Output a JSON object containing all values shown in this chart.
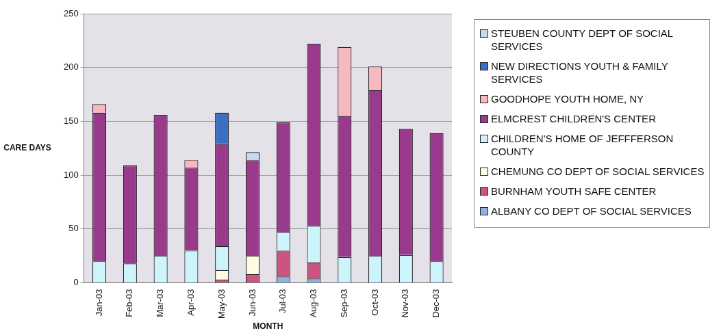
{
  "chart_data": {
    "type": "bar",
    "stacked": true,
    "xlabel": "MONTH",
    "ylabel": "CARE DAYS",
    "categories": [
      "Jan-03",
      "Feb-03",
      "Mar-03",
      "Apr-03",
      "May-03",
      "Jun-03",
      "Jul-03",
      "Aug-03",
      "Sep-03",
      "Oct-03",
      "Nov-03",
      "Dec-03"
    ],
    "series": [
      {
        "name": "ALBANY CO DEPT OF SOCIAL SERVICES",
        "color": "#8fb0e0",
        "values": [
          null,
          null,
          null,
          null,
          null,
          null,
          6,
          4,
          null,
          null,
          null,
          null
        ]
      },
      {
        "name": "BURNHAM YOUTH SAFE CENTER",
        "color": "#cc5580",
        "values": [
          null,
          null,
          null,
          null,
          3,
          8,
          24,
          15,
          null,
          null,
          null,
          null
        ]
      },
      {
        "name": "CHEMUNG CO DEPT OF SOCIAL SERVICES",
        "color": "#fffbe0",
        "values": [
          null,
          null,
          null,
          null,
          9,
          17,
          null,
          null,
          null,
          null,
          null,
          null
        ]
      },
      {
        "name": "CHILDREN'S HOME OF JEFFFERSON COUNTY",
        "color": "#ccf4fa",
        "values": [
          20,
          18,
          25,
          30,
          22,
          null,
          17,
          34,
          24,
          25,
          26,
          20
        ]
      },
      {
        "name": "ELMCREST CHILDREN'S CENTER",
        "color": "#993a8c",
        "values": [
          138,
          91,
          131,
          77,
          95,
          89,
          102,
          169,
          131,
          154,
          117,
          119
        ]
      },
      {
        "name": "GOODHOPE YOUTH HOME, NY",
        "color": "#f8b8c0",
        "values": [
          8,
          null,
          null,
          7,
          null,
          null,
          null,
          null,
          64,
          22,
          null,
          null
        ]
      },
      {
        "name": "NEW DIRECTIONS YOUTH & FAMILY SERVICES",
        "color": "#3a6fc4",
        "values": [
          null,
          null,
          null,
          null,
          29,
          null,
          null,
          null,
          null,
          null,
          null,
          null
        ]
      },
      {
        "name": "STEUBEN COUNTY DEPT OF SOCIAL SERVICES",
        "color": "#c8d8f0",
        "values": [
          null,
          null,
          null,
          null,
          null,
          7,
          null,
          null,
          null,
          null,
          null,
          null
        ]
      }
    ],
    "ylim": [
      0,
      250
    ],
    "yticks": [
      0,
      50,
      100,
      150,
      200,
      250
    ],
    "grid": "y",
    "legend": "right"
  }
}
